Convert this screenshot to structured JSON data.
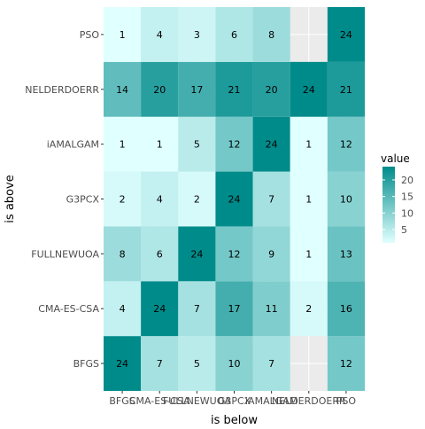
{
  "chart_data": {
    "type": "heatmap",
    "title": "",
    "xlabel": "is below",
    "ylabel": "is above",
    "x_categories": [
      "BFGS",
      "CMA-ES-CSA",
      "FULLNEWUOA",
      "G3PCX",
      "iAMALGAM",
      "NELDERDOERR",
      "PSO"
    ],
    "y_categories": [
      "BFGS",
      "CMA-ES-CSA",
      "FULLNEWUOA",
      "G3PCX",
      "iAMALGAM",
      "NELDERDOERR",
      "PSO"
    ],
    "values": [
      [
        24,
        7,
        5,
        10,
        7,
        null,
        12
      ],
      [
        4,
        24,
        7,
        17,
        11,
        2,
        16
      ],
      [
        8,
        6,
        24,
        12,
        9,
        1,
        13
      ],
      [
        2,
        4,
        2,
        24,
        7,
        1,
        10
      ],
      [
        1,
        1,
        5,
        12,
        24,
        1,
        12
      ],
      [
        14,
        20,
        17,
        21,
        20,
        24,
        21
      ],
      [
        1,
        4,
        3,
        6,
        8,
        null,
        24
      ]
    ],
    "legend": {
      "title": "value",
      "ticks": [
        5,
        10,
        15,
        20
      ],
      "position": "right",
      "low_color": "#e0ffff",
      "high_color": "#008b8b"
    },
    "value_range": [
      1,
      24
    ],
    "panel_background": "#ebebeb",
    "grid": true
  }
}
